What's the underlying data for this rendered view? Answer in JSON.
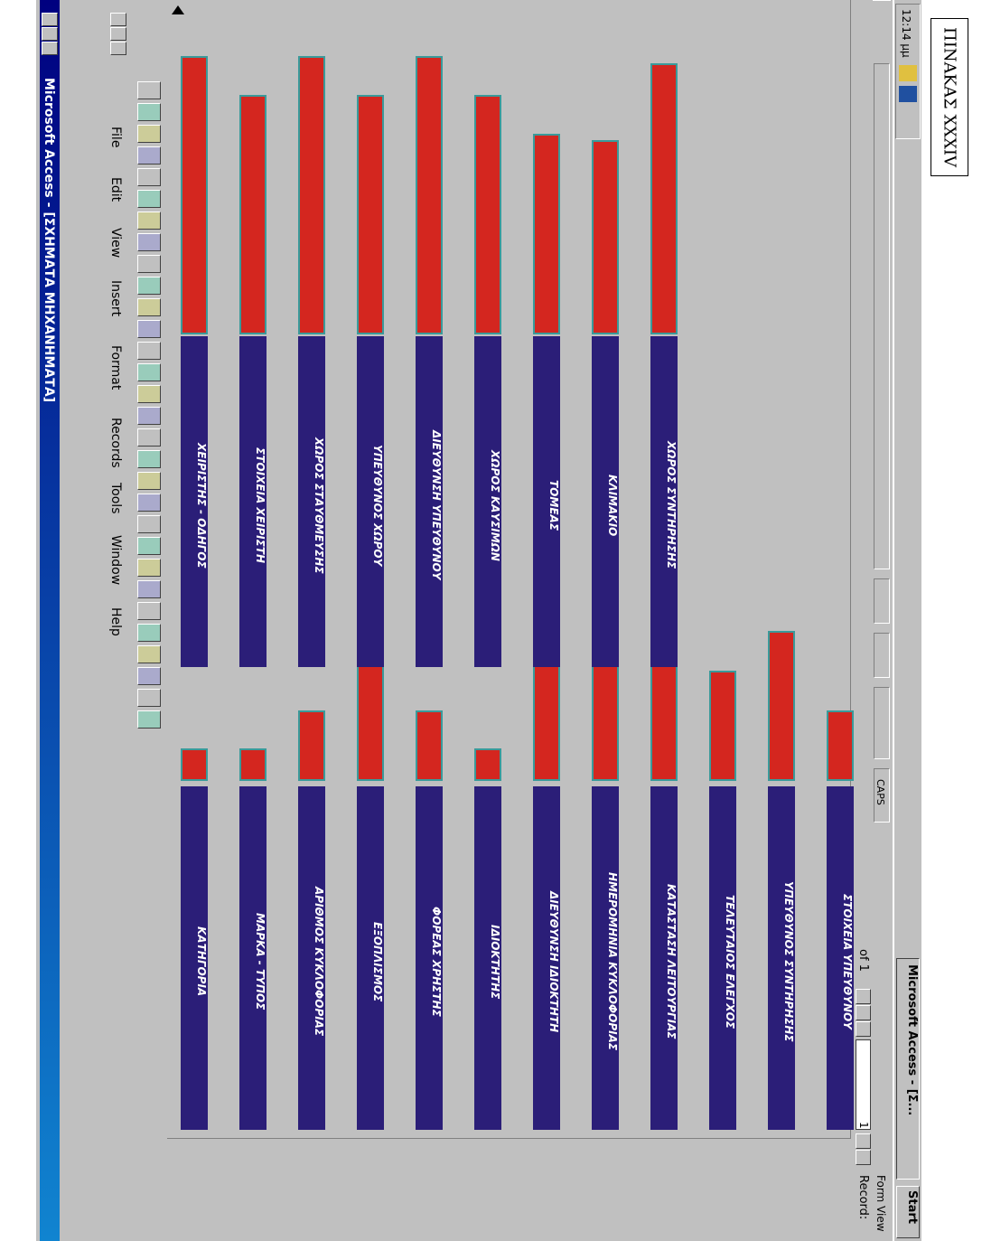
{
  "label": "ΠΙΝΑΚΑΣ XXXIV",
  "window": {
    "title": "Microsoft Access - [ΣΧΗΜΑΤΑ ΜΗΧΑΝΗΜΑΤΑ]"
  },
  "menu": [
    "File",
    "Edit",
    "View",
    "Insert",
    "Format",
    "Records",
    "Tools",
    "Window",
    "Help"
  ],
  "form": {
    "fields_left": [
      "ΚΑΤΗΓΟΡΙΑ",
      "ΜΑΡΚΑ - ΤΥΠΟΣ",
      "ΑΡΙΘΜΟΣ ΚΥΚΛΟΦΟΡΙΑΣ",
      "ΕΞΟΠΛΙΣΜΟΣ",
      "ΦΟΡΕΑΣ ΧΡΗΣΤΗΣ",
      "ΙΔΙΟΚΤΗΤΗΣ",
      "ΔΙΕΥΘΥΝΣΗ ΙΔΙΟΚΤΗΤΗ",
      "ΗΜΕΡΟΜΗΝΙΑ ΚΥΚΛΟΦΟΡΙΑΣ",
      "ΚΑΤΑΣΤΑΣΗ ΛΕΙΤΟΥΡΓΙΑΣ",
      "ΤΕΛΕΥΤΑΙΟΣ ΕΛΕΓΧΟΣ",
      "ΥΠΕΥΘΥΝΟΣ ΣΥΝΤΗΡΗΣΗΣ",
      "ΣΤΟΙΧΕΙΑ ΥΠΕΥΘΥΝΟΥ"
    ],
    "fields_right": [
      "ΧΕΙΡΙΣΤΗΣ - ΟΔΗΓΟΣ",
      "ΣΤΟΙΧΕΙΑ ΧΕΙΡΙΣΤΗ",
      "ΧΩΡΟΣ ΣΤΑΥΘΜΕΥΣΗΣ",
      "ΥΠΕΥΘΥΝΟΣ ΧΩΡΟΥ",
      "ΔΙΕΥΘΥΝΣΗ ΥΠΕΥΘΥΝΟΥ",
      "ΧΩΡΟΣ ΚΑΥΣΙΜΩΝ",
      "ΤΟΜΕΑΣ",
      "ΚΛΙΜΑΚΙΟ",
      "ΧΩΡΟΣ ΣΥΝΤΗΡΗΣΗΣ"
    ]
  },
  "navigation": {
    "label": "Record:",
    "current": 1,
    "total": "of 1"
  },
  "status": {
    "mode": "Form View",
    "caps": "CAPS"
  },
  "taskbar": {
    "start": "Start",
    "task": "Microsoft Access - [Σ...",
    "clock": "12:14 μμ"
  }
}
